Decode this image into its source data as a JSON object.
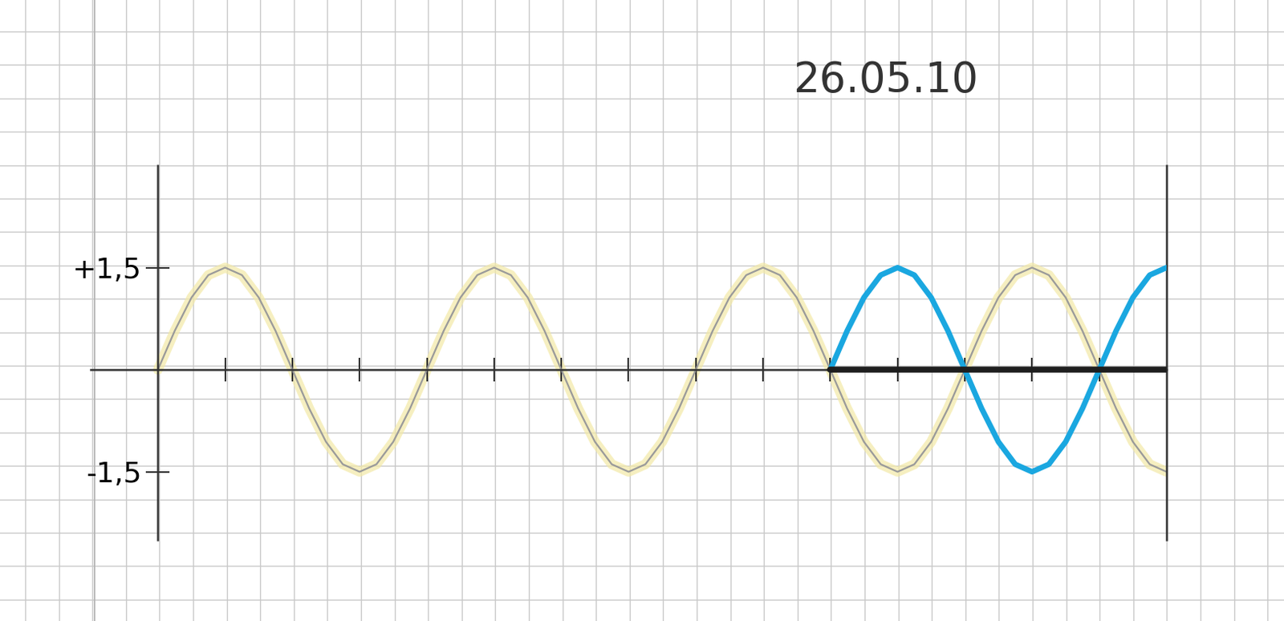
{
  "chart_data": {
    "type": "line",
    "annotations": [
      "26.05.10"
    ],
    "series": [
      {
        "color": "#9a9a9a",
        "line_style": "solid",
        "x": [
          0,
          0.25,
          0.5,
          0.75,
          1,
          1.25,
          1.5,
          1.75,
          2,
          2.25,
          2.5,
          2.75,
          3,
          3.25,
          3.5,
          3.75,
          4,
          4.25,
          4.5,
          4.75,
          5,
          5.25,
          5.5,
          5.75,
          6,
          6.25,
          6.5,
          6.75,
          7,
          7.25,
          7.5,
          7.75,
          8,
          8.25,
          8.5,
          8.75,
          9,
          9.25,
          9.5,
          9.75,
          10,
          10.25,
          10.5,
          10.75,
          11,
          11.25,
          11.5,
          11.75,
          12,
          12.25,
          12.5,
          12.75,
          13,
          13.25,
          13.5,
          13.75,
          14,
          14.25,
          14.5,
          14.75,
          15
        ],
        "values": [
          0,
          0.57,
          1.06,
          1.39,
          1.5,
          1.39,
          1.06,
          0.57,
          0,
          -0.57,
          -1.06,
          -1.39,
          -1.5,
          -1.39,
          -1.06,
          -0.57,
          0,
          0.57,
          1.06,
          1.39,
          1.5,
          1.39,
          1.06,
          0.57,
          0,
          -0.57,
          -1.06,
          -1.39,
          -1.5,
          -1.39,
          -1.06,
          -0.57,
          0,
          0.57,
          1.06,
          1.39,
          1.5,
          1.39,
          1.06,
          0.57,
          0,
          -0.57,
          -1.06,
          -1.39,
          -1.5,
          -1.39,
          -1.06,
          -0.57,
          0,
          0.57,
          1.06,
          1.39,
          1.5,
          1.39,
          1.06,
          0.57,
          0,
          -0.57,
          -1.06,
          -1.39,
          -1.5
        ]
      },
      {
        "color": "#1aa7e0",
        "line_style": "solid",
        "x": [
          10,
          10.25,
          10.5,
          10.75,
          11,
          11.25,
          11.5,
          11.75,
          12,
          12.25,
          12.5,
          12.75,
          13,
          13.25,
          13.5,
          13.75,
          14,
          14.25,
          14.5,
          14.75,
          15
        ],
        "values": [
          0,
          0.57,
          1.06,
          1.39,
          1.5,
          1.39,
          1.06,
          0.57,
          0,
          -0.57,
          -1.06,
          -1.39,
          -1.5,
          -1.39,
          -1.06,
          -0.57,
          0,
          0.57,
          1.06,
          1.39,
          1.5
        ]
      },
      {
        "color": "#1e1e1e",
        "line_style": "solid",
        "x": [
          10,
          15
        ],
        "values": [
          0,
          0
        ]
      }
    ],
    "xlim": [
      -1,
      15
    ],
    "xticks": [
      1,
      2,
      3,
      4,
      5,
      6,
      7,
      8,
      9,
      10,
      11,
      12,
      13,
      14
    ],
    "ylim": [
      -2.5,
      3
    ],
    "yticks": [
      {
        "value": 1.5,
        "label": "+1,5"
      },
      {
        "value": -1.5,
        "label": "-1,5"
      }
    ],
    "tick_labels": "y",
    "grid": false
  }
}
